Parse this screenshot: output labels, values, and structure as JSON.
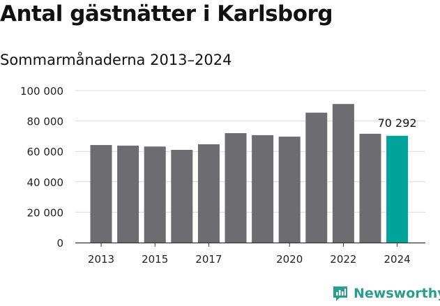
{
  "header": {
    "title": "Antal gästnätter i Karlsborg",
    "subtitle": "Sommarmånaderna 2013–2024"
  },
  "brand": {
    "name": "Newsworthy",
    "icon": "newsworthy-logo-icon",
    "color": "#2a9d8f"
  },
  "chart_data": {
    "type": "bar",
    "categories": [
      "2013",
      "2014",
      "2015",
      "2016",
      "2017",
      "2018",
      "2019",
      "2020",
      "2021",
      "2022",
      "2023",
      "2024"
    ],
    "values": [
      64200,
      63800,
      63200,
      61000,
      64700,
      72000,
      70700,
      69700,
      85500,
      91200,
      71600,
      70292
    ],
    "x_tick_labels": [
      "2013",
      "2015",
      "2017",
      "2020",
      "2022",
      "2024"
    ],
    "y_ticks": [
      0,
      20000,
      40000,
      60000,
      80000,
      100000
    ],
    "y_tick_labels": [
      "0",
      "20 000",
      "40 000",
      "60 000",
      "80 000",
      "100 000"
    ],
    "ylim": [
      0,
      100000
    ],
    "highlight_index": 11,
    "highlight_label": "70 292",
    "bar_color": "#6d6c70",
    "highlight_color": "#00a39a",
    "grid": true
  }
}
